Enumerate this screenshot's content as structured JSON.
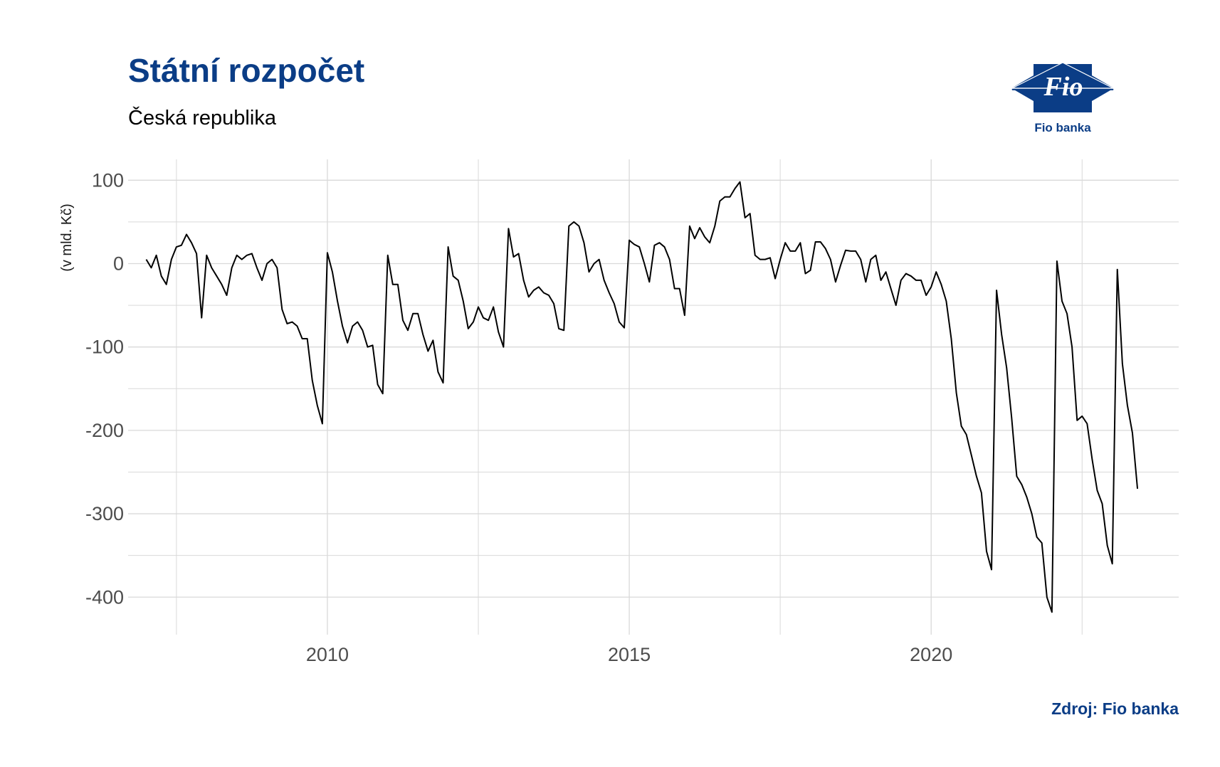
{
  "header": {
    "title": "Státní rozpočet",
    "subtitle": "Česká republika"
  },
  "logo": {
    "mark_text": "Fio",
    "caption": "Fio banka"
  },
  "footer": {
    "source": "Zdroj: Fio banka"
  },
  "colors": {
    "title": "#0b3d86",
    "line": "#000000",
    "grid": "#d9d9d9",
    "logo": "#0b3d86"
  },
  "chart_data": {
    "type": "line",
    "title": "Státní rozpočet",
    "subtitle": "Česká republika",
    "xlabel": "",
    "ylabel": "(v mld. Kč)",
    "xlim": [
      2006.7,
      2024.1
    ],
    "ylim": [
      -445,
      125
    ],
    "x_ticks": [
      2010,
      2015,
      2020
    ],
    "y_ticks": [
      100,
      0,
      -100,
      -200,
      -300,
      -400
    ],
    "grid": true,
    "series": [
      {
        "values": [
          [
            2007.0,
            5
          ],
          [
            2007.083,
            -5
          ],
          [
            2007.167,
            10
          ],
          [
            2007.25,
            -15
          ],
          [
            2007.333,
            -25
          ],
          [
            2007.417,
            5
          ],
          [
            2007.5,
            20
          ],
          [
            2007.583,
            22
          ],
          [
            2007.667,
            35
          ],
          [
            2007.75,
            25
          ],
          [
            2007.833,
            12
          ],
          [
            2007.917,
            -65
          ],
          [
            2008.0,
            10
          ],
          [
            2008.083,
            -5
          ],
          [
            2008.167,
            -15
          ],
          [
            2008.25,
            -25
          ],
          [
            2008.333,
            -38
          ],
          [
            2008.417,
            -5
          ],
          [
            2008.5,
            10
          ],
          [
            2008.583,
            5
          ],
          [
            2008.667,
            10
          ],
          [
            2008.75,
            12
          ],
          [
            2008.833,
            -5
          ],
          [
            2008.917,
            -20
          ],
          [
            2009.0,
            0
          ],
          [
            2009.083,
            5
          ],
          [
            2009.167,
            -5
          ],
          [
            2009.25,
            -55
          ],
          [
            2009.333,
            -72
          ],
          [
            2009.417,
            -70
          ],
          [
            2009.5,
            -75
          ],
          [
            2009.583,
            -90
          ],
          [
            2009.667,
            -90
          ],
          [
            2009.75,
            -140
          ],
          [
            2009.833,
            -170
          ],
          [
            2009.917,
            -192
          ],
          [
            2010.0,
            13
          ],
          [
            2010.083,
            -10
          ],
          [
            2010.167,
            -45
          ],
          [
            2010.25,
            -75
          ],
          [
            2010.333,
            -95
          ],
          [
            2010.417,
            -75
          ],
          [
            2010.5,
            -70
          ],
          [
            2010.583,
            -80
          ],
          [
            2010.667,
            -100
          ],
          [
            2010.75,
            -98
          ],
          [
            2010.833,
            -145
          ],
          [
            2010.917,
            -156
          ],
          [
            2011.0,
            10
          ],
          [
            2011.083,
            -25
          ],
          [
            2011.167,
            -25
          ],
          [
            2011.25,
            -68
          ],
          [
            2011.333,
            -80
          ],
          [
            2011.417,
            -60
          ],
          [
            2011.5,
            -60
          ],
          [
            2011.583,
            -85
          ],
          [
            2011.667,
            -105
          ],
          [
            2011.75,
            -92
          ],
          [
            2011.833,
            -130
          ],
          [
            2011.917,
            -143
          ],
          [
            2012.0,
            20
          ],
          [
            2012.083,
            -15
          ],
          [
            2012.167,
            -20
          ],
          [
            2012.25,
            -45
          ],
          [
            2012.333,
            -78
          ],
          [
            2012.417,
            -70
          ],
          [
            2012.5,
            -52
          ],
          [
            2012.583,
            -65
          ],
          [
            2012.667,
            -68
          ],
          [
            2012.75,
            -52
          ],
          [
            2012.833,
            -82
          ],
          [
            2012.917,
            -100
          ],
          [
            2013.0,
            42
          ],
          [
            2013.083,
            8
          ],
          [
            2013.167,
            12
          ],
          [
            2013.25,
            -20
          ],
          [
            2013.333,
            -40
          ],
          [
            2013.417,
            -32
          ],
          [
            2013.5,
            -28
          ],
          [
            2013.583,
            -35
          ],
          [
            2013.667,
            -38
          ],
          [
            2013.75,
            -48
          ],
          [
            2013.833,
            -78
          ],
          [
            2013.917,
            -80
          ],
          [
            2014.0,
            45
          ],
          [
            2014.083,
            50
          ],
          [
            2014.167,
            45
          ],
          [
            2014.25,
            25
          ],
          [
            2014.333,
            -10
          ],
          [
            2014.417,
            0
          ],
          [
            2014.5,
            5
          ],
          [
            2014.583,
            -20
          ],
          [
            2014.667,
            -35
          ],
          [
            2014.75,
            -48
          ],
          [
            2014.833,
            -70
          ],
          [
            2014.917,
            -77
          ],
          [
            2015.0,
            28
          ],
          [
            2015.083,
            23
          ],
          [
            2015.167,
            20
          ],
          [
            2015.25,
            0
          ],
          [
            2015.333,
            -22
          ],
          [
            2015.417,
            22
          ],
          [
            2015.5,
            25
          ],
          [
            2015.583,
            20
          ],
          [
            2015.667,
            5
          ],
          [
            2015.75,
            -30
          ],
          [
            2015.833,
            -30
          ],
          [
            2015.917,
            -62
          ],
          [
            2016.0,
            45
          ],
          [
            2016.083,
            30
          ],
          [
            2016.167,
            43
          ],
          [
            2016.25,
            32
          ],
          [
            2016.333,
            25
          ],
          [
            2016.417,
            45
          ],
          [
            2016.5,
            75
          ],
          [
            2016.583,
            80
          ],
          [
            2016.667,
            80
          ],
          [
            2016.75,
            90
          ],
          [
            2016.833,
            98
          ],
          [
            2016.917,
            55
          ],
          [
            2017.0,
            60
          ],
          [
            2017.083,
            10
          ],
          [
            2017.167,
            5
          ],
          [
            2017.25,
            5
          ],
          [
            2017.333,
            7
          ],
          [
            2017.417,
            -18
          ],
          [
            2017.5,
            5
          ],
          [
            2017.583,
            25
          ],
          [
            2017.667,
            15
          ],
          [
            2017.75,
            15
          ],
          [
            2017.833,
            25
          ],
          [
            2017.917,
            -12
          ],
          [
            2018.0,
            -8
          ],
          [
            2018.083,
            26
          ],
          [
            2018.167,
            26
          ],
          [
            2018.25,
            18
          ],
          [
            2018.333,
            5
          ],
          [
            2018.417,
            -22
          ],
          [
            2018.5,
            -2
          ],
          [
            2018.583,
            16
          ],
          [
            2018.667,
            15
          ],
          [
            2018.75,
            15
          ],
          [
            2018.833,
            5
          ],
          [
            2018.917,
            -22
          ],
          [
            2019.0,
            5
          ],
          [
            2019.083,
            10
          ],
          [
            2019.167,
            -20
          ],
          [
            2019.25,
            -10
          ],
          [
            2019.333,
            -30
          ],
          [
            2019.417,
            -50
          ],
          [
            2019.5,
            -20
          ],
          [
            2019.583,
            -12
          ],
          [
            2019.667,
            -15
          ],
          [
            2019.75,
            -20
          ],
          [
            2019.833,
            -20
          ],
          [
            2019.917,
            -38
          ],
          [
            2020.0,
            -28
          ],
          [
            2020.083,
            -10
          ],
          [
            2020.167,
            -25
          ],
          [
            2020.25,
            -45
          ],
          [
            2020.333,
            -90
          ],
          [
            2020.417,
            -155
          ],
          [
            2020.5,
            -195
          ],
          [
            2020.583,
            -205
          ],
          [
            2020.667,
            -230
          ],
          [
            2020.75,
            -255
          ],
          [
            2020.833,
            -275
          ],
          [
            2020.917,
            -345
          ],
          [
            2021.0,
            -367
          ],
          [
            2021.083,
            -32
          ],
          [
            2021.167,
            -85
          ],
          [
            2021.25,
            -125
          ],
          [
            2021.333,
            -185
          ],
          [
            2021.417,
            -255
          ],
          [
            2021.5,
            -265
          ],
          [
            2021.583,
            -280
          ],
          [
            2021.667,
            -300
          ],
          [
            2021.75,
            -328
          ],
          [
            2021.833,
            -335
          ],
          [
            2021.917,
            -400
          ],
          [
            2022.0,
            -418
          ],
          [
            2022.083,
            3
          ],
          [
            2022.167,
            -45
          ],
          [
            2022.25,
            -60
          ],
          [
            2022.333,
            -100
          ],
          [
            2022.417,
            -188
          ],
          [
            2022.5,
            -183
          ],
          [
            2022.583,
            -192
          ],
          [
            2022.667,
            -235
          ],
          [
            2022.75,
            -272
          ],
          [
            2022.833,
            -288
          ],
          [
            2022.917,
            -338
          ],
          [
            2023.0,
            -360
          ],
          [
            2023.083,
            -7
          ],
          [
            2023.167,
            -120
          ],
          [
            2023.25,
            -170
          ],
          [
            2023.333,
            -203
          ],
          [
            2023.417,
            -270
          ]
        ]
      }
    ]
  }
}
